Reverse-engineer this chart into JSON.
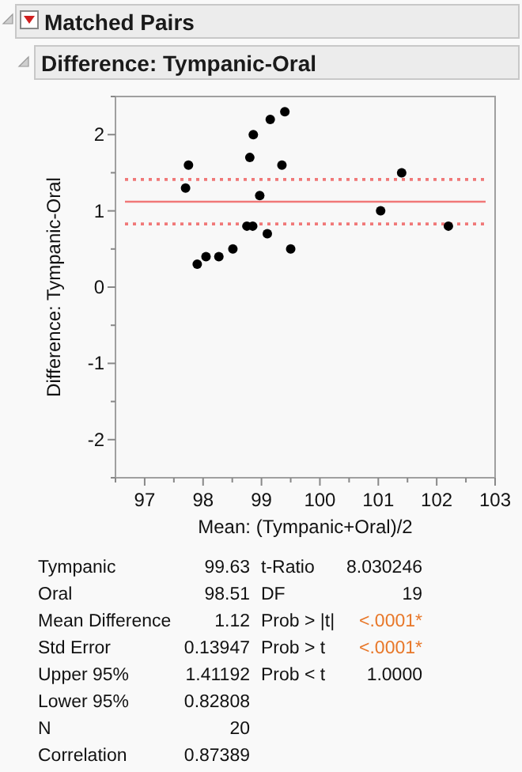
{
  "chart_data": {
    "type": "scatter",
    "title": "Matched Pairs",
    "subtitle": "Difference: Tympanic-Oral",
    "xlabel": "Mean: (Tympanic+Oral)/2",
    "ylabel": "Difference: Tympanic-Oral",
    "x": [
      97.75,
      97.7,
      97.9,
      98.05,
      98.27,
      98.51,
      98.75,
      98.85,
      98.8,
      98.86,
      98.97,
      99.1,
      99.15,
      99.35,
      99.4,
      99.5,
      101.04,
      101.4,
      102.2
    ],
    "series": [
      {
        "color": "#000000",
        "values": [
          1.6,
          1.3,
          0.3,
          0.4,
          0.4,
          0.5,
          0.8,
          0.8,
          1.7,
          2.0,
          1.2,
          0.7,
          2.2,
          1.6,
          2.3,
          0.5,
          1.0,
          1.5,
          0.8
        ]
      }
    ],
    "marker": "circle",
    "grid": false,
    "xlim": [
      96.5,
      103
    ],
    "xticks": [
      {
        "value": 96.5,
        "label": null
      },
      97,
      {
        "value": 97.5,
        "label": null
      },
      98,
      {
        "value": 98.5,
        "label": null
      },
      99,
      {
        "value": 99.5,
        "label": null
      },
      100,
      {
        "value": 100.5,
        "label": null
      },
      101,
      {
        "value": 101.5,
        "label": null
      },
      102,
      {
        "value": 102.5,
        "label": null
      },
      103
    ],
    "ylim": [
      -2.5,
      2.5
    ],
    "yticks": [
      {
        "value": -2.5,
        "label": null
      },
      -2,
      {
        "value": -1.5,
        "label": null
      },
      -1,
      {
        "value": -0.5,
        "label": null
      },
      0,
      {
        "value": 0.5,
        "label": null
      },
      1,
      {
        "value": 1.5,
        "label": null
      },
      2,
      {
        "value": 2.5,
        "label": null
      }
    ],
    "ref_lines": [
      {
        "axis": "y",
        "value": 1.12,
        "color": "#f07878",
        "line_style": "solid"
      },
      {
        "axis": "y",
        "value": 1.41192,
        "color": "#f07878",
        "line_style": "dotted"
      },
      {
        "axis": "y",
        "value": 0.82808,
        "color": "#f07878",
        "line_style": "dotted"
      }
    ],
    "annotations": [
      "Tympanic",
      "Oral",
      "Mean Difference",
      "Std Error",
      "Upper 95%",
      "Lower 95%",
      "N",
      "Correlation",
      "99.63",
      "98.51",
      "1.12",
      "0.13947",
      "1.41192",
      "0.82808",
      "20",
      "0.87389",
      "t-Ratio",
      "DF",
      "Prob > |t|",
      "Prob > t",
      "Prob < t",
      "8.030246",
      "19",
      "<.0001*",
      "<.0001*",
      "1.0000"
    ]
  }
}
